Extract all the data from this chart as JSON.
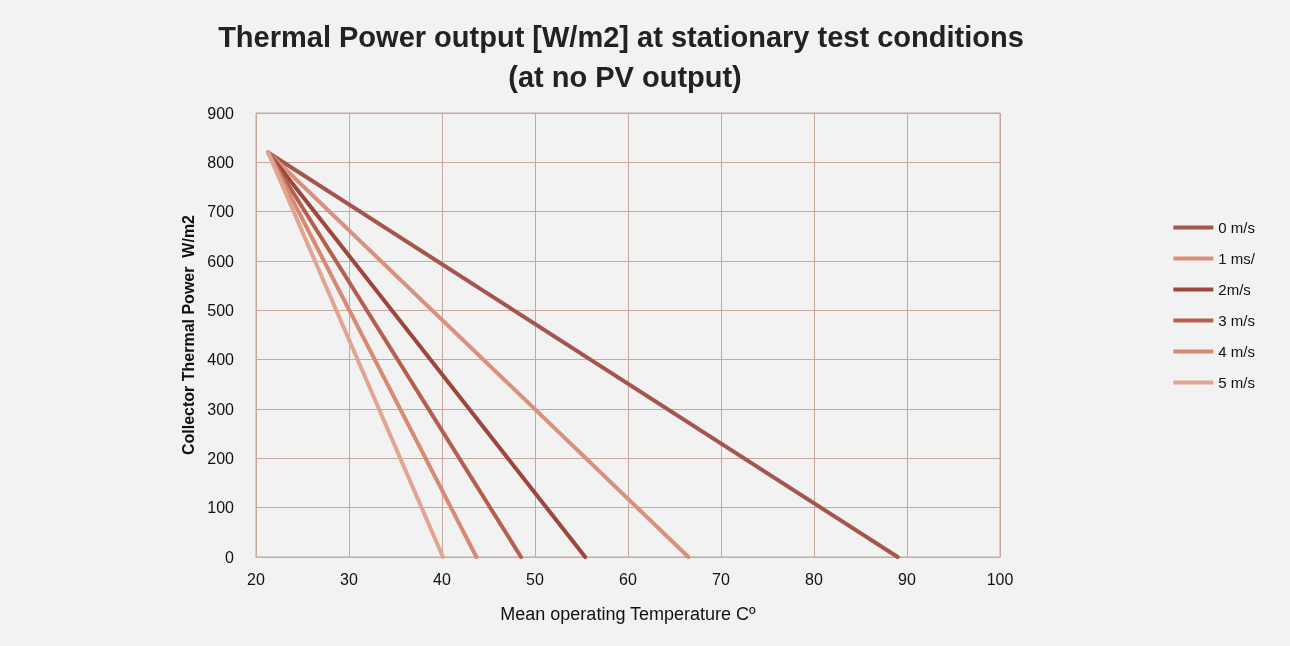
{
  "chart_data": {
    "type": "line",
    "title": "Thermal Power output [W/m2] at stationary test conditions (at no PV output)",
    "xlabel": "Mean operating Temperature Cº",
    "ylabel": "Collector Thermal Power  W/m2",
    "xlim": [
      20,
      100
    ],
    "xticks": [
      20,
      30,
      40,
      50,
      60,
      70,
      80,
      90,
      100
    ],
    "ylim": [
      0,
      900
    ],
    "yticks": [
      0,
      100,
      200,
      300,
      400,
      500,
      600,
      700,
      800,
      900
    ],
    "grid": true,
    "legend": "right",
    "marker": "none",
    "line_style": "solid",
    "series": [
      {
        "name": "0 m/s",
        "color": "#a5564c",
        "x": [
          21.3,
          89
        ],
        "values": [
          820,
          0
        ]
      },
      {
        "name": "1 ms/",
        "color": "#d9917c",
        "x": [
          21.3,
          66.5
        ],
        "values": [
          820,
          0
        ]
      },
      {
        "name": "2m/s",
        "color": "#9e463c",
        "x": [
          21.3,
          55.4
        ],
        "values": [
          820,
          0
        ]
      },
      {
        "name": "3 m/s",
        "color": "#b5604f",
        "x": [
          21.3,
          48.5
        ],
        "values": [
          820,
          0
        ]
      },
      {
        "name": "4 m/s",
        "color": "#d68a72",
        "x": [
          21.3,
          43.7
        ],
        "values": [
          820,
          0
        ]
      },
      {
        "name": "5 m/s",
        "color": "#e2a592",
        "x": [
          21.3,
          40.1
        ],
        "values": [
          820,
          0
        ]
      }
    ]
  }
}
